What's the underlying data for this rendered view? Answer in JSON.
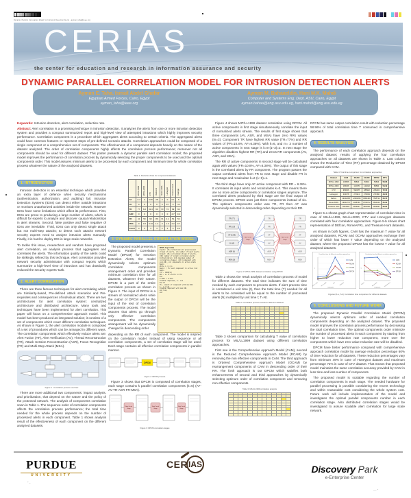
{
  "meta": {
    "print_line": "Dynamic Parallel Correlation Model for Intrusion Detection Alerts - ayman_taha@ieee.org"
  },
  "colors": {
    "title_red": "#e23a2e",
    "pill_blue": "#6f9cc4",
    "pill_text_yellow": "#f7e11c",
    "authors_bar": "#8ba6bc",
    "author_names_gold": "#e9a63c",
    "table_cream": "#fbf6e1",
    "table_yellow": "#fcf5c8",
    "highlight_yellow": "#ffe84a",
    "series": {
      "CAM": "#4472c4",
      "RCAM": "#c0504d",
      "OCAM": "#9bbb59",
      "DPCM": "#8064a2"
    },
    "stage_pink": "#eac3c3"
  },
  "header": {
    "logo": "CERIAS",
    "tagline": "the center for education and research in information assurance and security",
    "title": "DYNAMIC PARALLEL CORRELATIION MODEL FOR INTRUSION DETECTION ALERTS"
  },
  "authors": {
    "groups": [
      {
        "names": "Ayman E. Taha, Ismail Abdel Ghafar",
        "affiliation": "Egyptian Armed Forces, Cairo, Egypt",
        "email": "ayman_taha@ieee.org"
      },
      {
        "names": "Ayman M. Bahaaeldin, Hani M.K. Mahdi",
        "affiliation": "Computer and Systems Eng. Dept. ASU, Cairo, Egypt",
        "email": "ayman.bahaa@eng.asu.edu.eg, hani.mahdi@eng.asu.edu.eg"
      }
    ]
  },
  "abstract": {
    "keywords_label": "Keywords:",
    "keywords_text": "Intrusion detection, alert correlation, reduction rate.",
    "abstract_label": "Abstract:",
    "abstract_text": "Alert correlation is a promising technique in intrusion detection. It analyzes the alerts from one or more intrusion detection system and provides a compact summarized report and high-level view of attempted intrusions which highly improves security performance. Correlation component is a procedure which aggregates alerts according to certain criteria. The aggregated alerts could have common features or represent steps of pre-defined scenario attacks. Correlation approaches could be composed of a single component or a comprehensive set of components. The effectiveness of a component depends heavily on the nature of the dataset analyzed. The order of correlation components highly affects the correlation process performance; moreover not all components should be used for different dataset. This poster presents a dynamic parallel alert correlation model; the proposed model improves the performance of correlation process by dynamically selecting the proper components to be used and the optimal components order. This model assures minimum alerts to be processed by each component and minimum time for whole correlation process whatever the nature of the analyzed datasets."
  },
  "col1": {
    "s1_heading": "1. INTRODUCTION",
    "s1_p1": "Intrusion detection is an essential technique which provides an extra layer of defence when security mechanisms (authentication, authorization, and auditing) fail. Intrusion Detection Systems (IDSs) can detect either outside intrusions or monitors unauthorized activities inside the network. However IDSs have some limitations which affect its performance. First, IDSs are prone to producing a large number of alerts, which is difficult for experts to analyze and discover causal relationships in alert streams. Second, false positive and false negative of IDSs are inevitable. Third, IDSs can only detect single attack but not multi-step attacks; to detect such attacks network security experts need to analyze intrusion alerts manually. Finally, it is hard to deploy IDS in large scale networks.",
    "s1_p2": "To tackle this issue, researchers and vendors have proposed alert correlation, an analysis process that aggregates and correlates the alerts. The information quality of the alerts could be strikingly refined by this technique. Alert correlation provides network security administrator with compact reports which summarize a high-level view of intrusions and has drastically reduced the security experts' task.",
    "s2_heading": "2. ALERT CORRELATION",
    "s2_p1": "There are three famous techniques for alert correlating which are Similarity-based, Pre-defined attack scenarios and Pre-requisites and consequences of individual attack. There are two architectures for alert correlation system: centralized architecture and distributed architecture. Many tools and techniques have been implemented for alert correlation. This paper will focus on a comprehensive approach model. This model has been produced as integrated solution; it consists of a set of components which cover different correlation techniques. As shown in Figure 1, the alert correlation module is composed of a set of procedures which can be arranged in different ways. The correlation components which effectively reduce alerts are: Alert Fusion (AF), Alert Verification (AV), Thread Reconstruction (TR), Attack Session Reconstruction (ASR), Focus Recognition (FR) and Multi-Step Attack (MSA).",
    "fig1_caption": "Figure 1 : Correlation process overview",
    "s2_p2": "There are more additional two components: impact analysis, and prioritization, that depend on the nature and the policy of the protected network. The analysis of components correlation sown in Table 1. The sequence order of correlation components affects the correlation process performance; the total time needed for the whole process depends on the number of processed alerts in each component. Table 1 shows analysis result of the effectiveness of each component on the different analyzed datasets."
  },
  "col2": {
    "table1": {
      "caption": "Table 1. Reduction Rate for components/datasets",
      "col_headers": [
        "MIT/LL1999",
        "MIT/LL2000",
        "CTV",
        "Defcon 9",
        "Rome AFRL",
        "Honeypot",
        "Treasure Hunt",
        "Average"
      ],
      "rows": [
        {
          "label": "AF",
          "values": [
            "6.4",
            "0",
            "0.06",
            "28",
            "0",
            "0",
            "0.1",
            "5"
          ]
        },
        {
          "label": "AV",
          "values": [
            "0",
            "0",
            "0",
            "0",
            "0",
            "97",
            "0",
            "14"
          ]
        },
        {
          "label": "TR",
          "values": [
            "77",
            "6.6",
            "31.3",
            "60",
            "70",
            "72",
            "99",
            "60"
          ]
        },
        {
          "label": "ASR",
          "values": [
            "0",
            "0",
            "0",
            "0",
            "0",
            "0",
            "2.7",
            "0.4"
          ]
        },
        {
          "label": "FR",
          "values": [
            "11",
            "50",
            "90",
            "89",
            "71",
            "2.1",
            "51",
            "52"
          ]
        },
        {
          "label": "MSA",
          "values": [
            "0",
            "0.2",
            "0.43",
            "1.2",
            "0",
            "1.0",
            "2.2",
            "0.7"
          ]
        },
        {
          "label": "Count",
          "values": [
            "3",
            "3",
            "4",
            "4",
            "2",
            "4",
            "5",
            "3.6"
          ]
        }
      ]
    },
    "s3_heading": "3. DYNAMIC PARALLEL CORRELATION MODEL",
    "p1": "The proposed model presents a Dynamic Parallel Correlation Model (DPCM) for Intrusion Detection Alerts; the model dynamically selects optimum correlation components arrangement order and provides minimum correlation time for all datasets, whatever their nature. DPCM is a part of the entire correlation process as shown in Figure 2. The input of DPCM is a stream of normalized alerts while the output of DPCM will be the input of the rest of correlation components process. The model assures that alerts go through only effective correlation components. The components arrangement will be dynamically changed in descending order",
    "algorithm": {
      "title": "DPCM Algorithm",
      "lines": [
        "Inputs: (IS) normalized and preprocessed",
        "stream of alerts, (K) number of input alerts",
        "Output: (OS) correlated stream of alerts,",
        "(OP) number of output correlated alerts",
        "Initialization: k=6 (maximum number of",
        "correlation stages), m=0 (component with",
        "zero RR), all components in active state",
        "Begin",
        " While i < k do",
        "  Begin: / For each component in active list",
        "   Begin",
        "     CSi ← CORR(Si)",
        "     RRi ← no of alerts in CSi",
        "   End",
        "   If RRi = 0 then",
        "     disable component, m ← m+1",
        "   End If",
        "   OS ← output of component with max RRi",
        "   k ← k-(1+m)",
        "   disable component with max RRi",
        " end loop",
        "end"
      ]
    },
    "p2": "depending on the RR of each component. The model is inspired on the correlation model. Instead of using sequence or all correlation components, a set of correlation stage will be used. Each stage contains all effective correlation components in parallel manner.",
    "fig2_caption": "Figure 2: DPCM process",
    "fig2_dpcm_label": "DPCM",
    "p3": "Figure 3 shows that DPCM is composed of correlation stages, each stage contains k parallel correlation components (k=6) (AF-AV-TR-ASR-FR-MSA).",
    "fig3_caption": "Figure 3: DPCM correlation stages",
    "fig3_stage_label": "Next Correl Stage"
  },
  "col3": {
    "p1": "Figure 4 shows MIT/LL1999 dataset correlation using DPCM. All active components in first stage simultaneously correlate the input of normalized alerts stream. The results of first stage shows that three components (AV, ASR, and MSA) have zero RRs values (m=3). Component TR have highest RR value (TR=77%) and RR values of (FR=10.8%, AF=6.38%). With k=6, and m= 3 number of active components in next stage is k=6-(1+3)=2. In next stage the algorithm disables highest RR (TR) and zeros RR components (AV, ASR, and MSA).",
    "p2": "The RR of active components in second stage will be calculated again with values (FR=10.8%, AF=6.38%). The output of this stage is the correlated alerts by FR component. The program passes the output correlated alerts from FR to next stage and disable FR in next stage and recalculate k=2-(1+0)=1.",
    "p3": "The third stage have only AF active component with RR = 6.38%. It correlates its input alerts and recalculates k=0. This means there are no more active components or correlation stages anymore. The correlated alerts produced by third stage are the final output of DPCM process. DPCM uses just three components instead of six. The optimum components order was TR, FR then AF was dynamically selected in descending order depending on their RR.",
    "fig4": {
      "caption": "Figure 4: MIT/LL1999 dataset correlation using DPCM",
      "stage1_components": [
        "TR (77)",
        "FR 10.8",
        "AF (6.38)",
        "AV (0)",
        "ASR (0)",
        "MSA (0)"
      ],
      "stage2_components": [
        "TR",
        "FR",
        "AF",
        "AV",
        "ASR",
        "MSA"
      ],
      "stage3_components": [
        "TR",
        "FR",
        "AF",
        "AV",
        "ASR",
        "MSA"
      ],
      "stage_label_1": "Next Correl",
      "stage_label_2": "Stage"
    },
    "p4": "Table 2 shows the result analysis of correlation process of model for different datasets. The total time indicates the sum of time needed by each component to process alerts. If alert process time is considered a unit time (t), then the total time (T) needed for all alerts to be correlated will be equal to the number of processed alerts (N) multiplied by unit time t; T=Nt.",
    "table2": {
      "caption": "Table 2: Correlation process results for different datasets",
      "rows": 10,
      "cols": 12,
      "header_rows": 2,
      "highlights": [
        [
          2,
          10
        ]
      ]
    },
    "p5": "Table 3 shows comparison for calculating T value of correlation process for MIL/LL1999 dataset using different correlation approaches.",
    "p6": "First one is the Comprehensive Approach Model (CAM), second is the Reduced Comprehensive Approach Model (RCAM) by removing the non effective components in CAM. The third approach is Ordered Comprehensive Approach Model (OCAM) by rearrangement components of CAM in descending order of their RR. The forth approach is our DPCM which satisfies both enhancements of second and third approaches by dynamically selecting optimum order of correlation component and removing non effective components.",
    "table3": {
      "caption": "Table 3: MIL/LL1999 correlation analysis",
      "rows": 9,
      "cols": 13,
      "header_rows": 2,
      "highlights": [
        [
          2,
          11
        ],
        [
          6,
          12
        ]
      ]
    }
  },
  "col4": {
    "p0": "DPCM has same output correlation result with reduction percentage 58.96% of total correlation time T consumed in comprehensive approach.",
    "s4_heading": "4. RESULTS ANALYSIS",
    "p1": "The performance of each correlation approach depends on the analyzed dataset; results of applying the four correlation approaches on all datasets are shown in Table 4. Last column shows the Reduction of Time (RT) percentage obtained by DPCM compared with CAM.",
    "table4": {
      "caption": "Table 4: Total time comparison for correlation approaches",
      "col_headers": [
        "Dataset",
        "CAM",
        "RCAM",
        "OCAM",
        "DPCM",
        "RT%"
      ],
      "rows": [
        [
          "MIT/LL 1999",
          "145866",
          "89820",
          "83619",
          "59843",
          "58.96"
        ],
        [
          "MIT/LL 2000",
          "195366",
          "124725",
          "124022",
          "89590",
          "54.19"
        ],
        [
          "CTV",
          "954926",
          "592478",
          "285942",
          "266434",
          "72.10"
        ],
        [
          "Honeypot",
          "334178",
          "271913",
          "276029",
          "271980",
          "49.10"
        ],
        [
          "Defcon",
          "19342668",
          "12963335",
          "8082499",
          "7595712",
          "60.73"
        ],
        [
          "Rome AFRL",
          "19942776",
          "4498766",
          "8706672",
          "6843102",
          "65.02"
        ],
        [
          "Treasure Hunt",
          "5654666",
          "5626027",
          "2810561",
          "2814837",
          "66.65"
        ]
      ]
    },
    "p2": "Figure 5-a shows graph chart representation of correlation time in case of MIL/LL1999, MIL/LL2000, CTV and Honeypot datasets correlated with four correlation approaches. Figure 5-b shows chart representation of DEfcon, RomeAFRL, and Treasure Hunt datasets.",
    "p3": "As shown in both figures, CAM has the maximum T value for all analyzed datasets, RCAM and OCAM approaches exchange their order of which has lower T value depending on the analyzed dataset, where the proposed DPCM has the lowest T value for all analyzed datasets.",
    "fig5_caption": "Figures (5-a , 5-b): Correlation time comparison for different datasets",
    "s5_heading": "5. CONCLUSIONS AND FUTURE WORK",
    "c1": "The proposed Dynamic Parallel Correlation Model (DPCM) dynamically selects optimum order of needed correlation components depending on the analyzed dataset. The proposed model improves the correlation process performance by decreasing the total correlation time. The optimal components order minimize the number of processed alerts in each component by starting from higher to lower reduction rate component, more over the components which have zero value reduction rate will be disabled.",
    "c2": "DPCM have better performance compared with comprehensive approach correlation model by average reduction percentage 60% of time reduction for all datasets. These reduction percentages vary from minimum 49% in case of Honeypot dataset and maximum percentage 72% in case of CTV dataset. That means that proposed model maintains the same correlation accuracy provided by CAM in less time and less number of components.",
    "c3": "The proposed model is scalable regarding the number of correlation components in each stage. The needed hardware for parallel processing is possible considering the recent technology and within reasonable cost considering the whole system cost. Future work will include implementation of the model and investigates the optimal parallel components number in each correlation stage. Also distributed correlation stages would be investigated to assure scalable alert correlation for large scale network."
  },
  "chart_data": [
    {
      "type": "line",
      "title": "Correlation time for different correlation approaches",
      "xlabel": "Datasets",
      "ylabel": "T",
      "categories": [
        "MIT/LL 1999",
        "MIT/LL 2000",
        "CTV",
        "Honeypot"
      ],
      "series": [
        {
          "name": "CAM",
          "values": [
            145866,
            195366,
            954926,
            334178
          ]
        },
        {
          "name": "RCAM",
          "values": [
            89820,
            124725,
            592478,
            271913
          ]
        },
        {
          "name": "OCAM",
          "values": [
            83619,
            124022,
            285942,
            276029
          ]
        },
        {
          "name": "DPCM",
          "values": [
            59843,
            89590,
            266434,
            271980
          ]
        }
      ],
      "legend_position": "right",
      "grid": true
    },
    {
      "type": "line",
      "title": "Correlation time for different correlation approaches",
      "xlabel": "Datasets",
      "ylabel": "T",
      "categories": [
        "Defcon",
        "Rome AFRL",
        "Treasure Hunt"
      ],
      "series": [
        {
          "name": "CAM",
          "values": [
            19342668,
            19942776,
            5654666
          ]
        },
        {
          "name": "RCAM",
          "values": [
            12963335,
            4498766,
            5626027
          ]
        },
        {
          "name": "OCAM",
          "values": [
            8082499,
            8706672,
            2810561
          ]
        },
        {
          "name": "DPCM",
          "values": [
            7595712,
            6843102,
            2814837
          ]
        }
      ],
      "legend_position": "right",
      "grid": true
    }
  ],
  "footer": {
    "purdue_line1": "PURDUE",
    "purdue_line2": "UNIVERSITY",
    "cerias_prefix": "CER",
    "cerias_lens": "IAS",
    "discovery_bold": "Discovery",
    "discovery_light": "Park",
    "discovery_sub": "e-Enterprise Center"
  }
}
